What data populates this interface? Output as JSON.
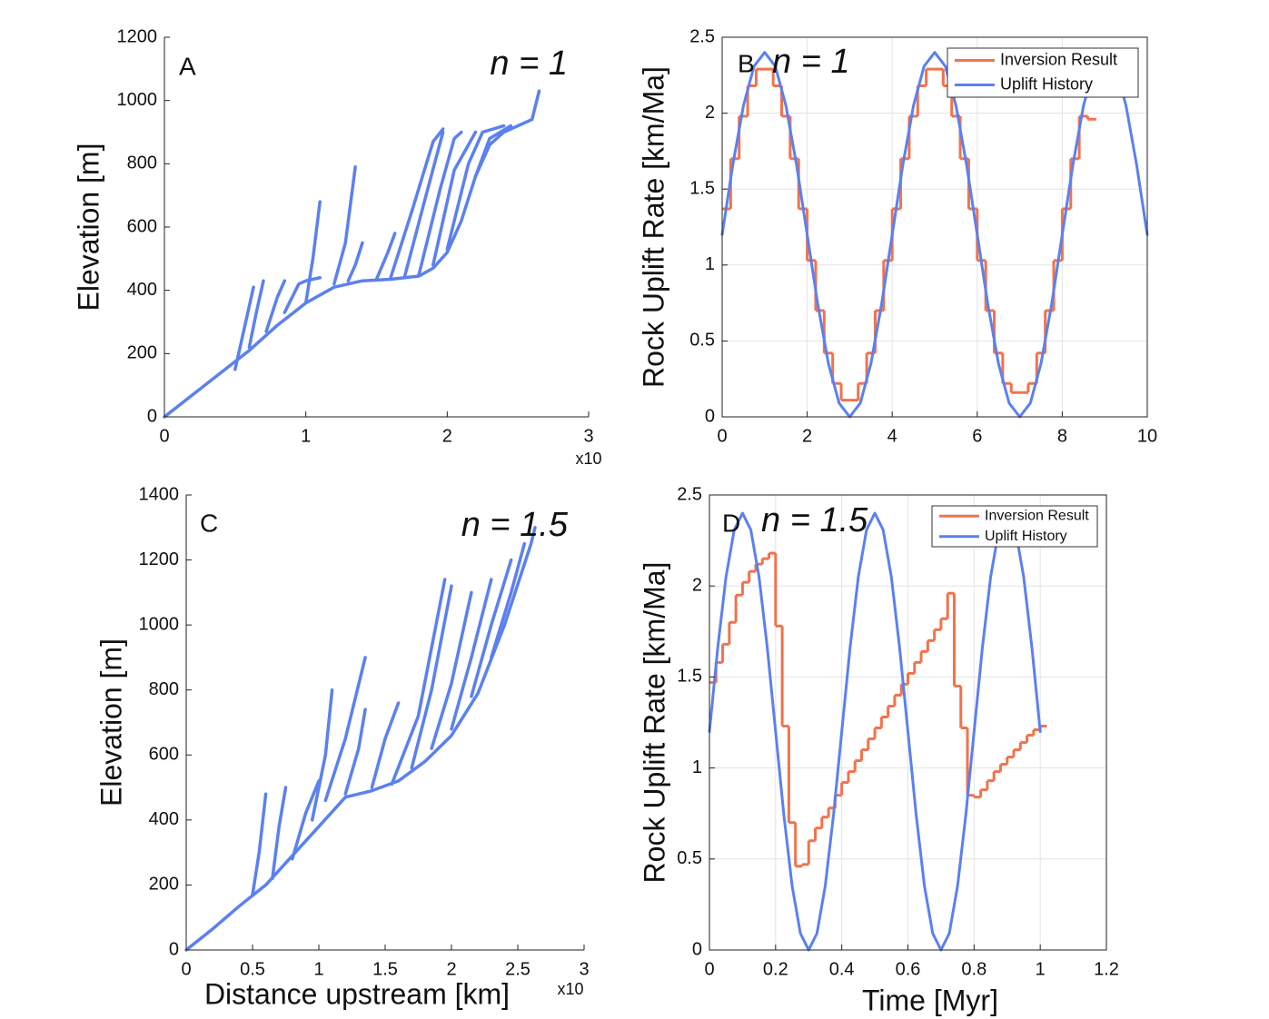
{
  "chart_data": [
    {
      "type": "line",
      "panel_label": "A",
      "annotation": "n = 1",
      "ylabel": "Elevation [m]",
      "x_multiplier": "x10",
      "xlim": [
        0,
        3
      ],
      "ylim": [
        0,
        1200
      ],
      "xticks": [
        0,
        1,
        2,
        3
      ],
      "yticks": [
        0,
        200,
        400,
        600,
        800,
        1000,
        1200
      ],
      "grid": false,
      "box": false,
      "series": [
        {
          "color": "#5b80f0",
          "x": [
            0,
            0.2,
            0.4,
            0.6,
            0.8,
            1.0,
            1.2,
            1.4,
            1.6,
            1.8,
            1.9,
            2.0,
            2.1,
            2.2,
            2.3,
            2.4,
            2.5,
            2.6,
            2.65
          ],
          "values": [
            0,
            70,
            140,
            210,
            290,
            360,
            410,
            430,
            435,
            445,
            470,
            520,
            620,
            760,
            860,
            900,
            920,
            940,
            1030
          ]
        },
        {
          "color": "#5b80f0",
          "x": [
            0.5,
            0.55,
            0.6,
            0.63
          ],
          "values": [
            150,
            250,
            350,
            410
          ]
        },
        {
          "color": "#5b80f0",
          "x": [
            0.6,
            0.65,
            0.7
          ],
          "values": [
            220,
            330,
            430
          ]
        },
        {
          "color": "#5b80f0",
          "x": [
            0.72,
            0.8,
            0.85
          ],
          "values": [
            270,
            380,
            430
          ]
        },
        {
          "color": "#5b80f0",
          "x": [
            0.85,
            0.95,
            1.0,
            1.1
          ],
          "values": [
            330,
            420,
            430,
            440
          ]
        },
        {
          "color": "#5b80f0",
          "x": [
            1.0,
            1.05,
            1.1
          ],
          "values": [
            360,
            500,
            680
          ]
        },
        {
          "color": "#5b80f0",
          "x": [
            1.2,
            1.28,
            1.35
          ],
          "values": [
            420,
            550,
            790
          ]
        },
        {
          "color": "#5b80f0",
          "x": [
            1.3,
            1.35,
            1.4
          ],
          "values": [
            430,
            480,
            550
          ]
        },
        {
          "color": "#5b80f0",
          "x": [
            1.5,
            1.58,
            1.63
          ],
          "values": [
            435,
            520,
            580
          ]
        },
        {
          "color": "#5b80f0",
          "x": [
            1.6,
            1.75,
            1.9,
            1.97
          ],
          "values": [
            440,
            650,
            870,
            910
          ]
        },
        {
          "color": "#5b80f0",
          "x": [
            1.7,
            1.85,
            1.97
          ],
          "values": [
            445,
            700,
            900
          ]
        },
        {
          "color": "#5b80f0",
          "x": [
            1.8,
            1.95,
            2.05,
            2.1
          ],
          "values": [
            450,
            720,
            880,
            900
          ]
        },
        {
          "color": "#5b80f0",
          "x": [
            1.9,
            2.05,
            2.2
          ],
          "values": [
            480,
            780,
            900
          ]
        },
        {
          "color": "#5b80f0",
          "x": [
            2.0,
            2.15,
            2.25,
            2.4
          ],
          "values": [
            530,
            800,
            900,
            920
          ]
        },
        {
          "color": "#5b80f0",
          "x": [
            2.2,
            2.3,
            2.45
          ],
          "values": [
            760,
            880,
            920
          ]
        }
      ]
    },
    {
      "type": "line",
      "panel_label": "B",
      "annotation": "n = 1",
      "ylabel": "Rock Uplift Rate [km/Ma]",
      "xlim": [
        0,
        10
      ],
      "ylim": [
        0,
        2.5
      ],
      "xticks": [
        0,
        2,
        4,
        6,
        8,
        10
      ],
      "yticks": [
        0,
        0.5,
        1,
        1.5,
        2,
        2.5
      ],
      "grid": true,
      "box": true,
      "legend": "upper right",
      "series": [
        {
          "name": "Inversion Result",
          "color": "#f2724b",
          "step": true,
          "x": [
            0,
            0.2,
            0.4,
            0.6,
            0.8,
            1.0,
            1.2,
            1.4,
            1.6,
            1.8,
            2.0,
            2.2,
            2.4,
            2.6,
            2.8,
            3.0,
            3.2,
            3.4,
            3.6,
            3.8,
            4.0,
            4.2,
            4.4,
            4.6,
            4.8,
            5.0,
            5.2,
            5.4,
            5.6,
            5.8,
            6.0,
            6.2,
            6.4,
            6.6,
            6.8,
            7.0,
            7.2,
            7.4,
            7.6,
            7.8,
            8.0,
            8.2,
            8.4,
            8.6
          ],
          "values": [
            1.37,
            1.7,
            1.98,
            2.18,
            2.29,
            2.29,
            2.18,
            1.98,
            1.7,
            1.37,
            1.03,
            0.7,
            0.42,
            0.22,
            0.11,
            0.11,
            0.22,
            0.42,
            0.7,
            1.03,
            1.37,
            1.7,
            1.98,
            2.18,
            2.29,
            2.29,
            2.18,
            1.98,
            1.7,
            1.37,
            1.03,
            0.7,
            0.42,
            0.22,
            0.16,
            0.16,
            0.22,
            0.42,
            0.7,
            1.03,
            1.37,
            1.7,
            1.98,
            1.96
          ]
        },
        {
          "name": "Uplift History",
          "color": "#5b80f0",
          "x": [
            0,
            0.25,
            0.5,
            0.75,
            1,
            1.25,
            1.5,
            1.75,
            2,
            2.25,
            2.5,
            2.75,
            3,
            3.25,
            3.5,
            3.75,
            4,
            4.25,
            4.5,
            4.75,
            5,
            5.25,
            5.5,
            5.75,
            6,
            6.25,
            6.5,
            6.75,
            7,
            7.25,
            7.5,
            7.75,
            8,
            8.25,
            8.5,
            8.75,
            9,
            9.25,
            9.5,
            9.75,
            10
          ],
          "values": [
            1.2,
            1.659,
            2.049,
            2.309,
            2.4,
            2.309,
            2.049,
            1.659,
            1.2,
            0.741,
            0.351,
            0.091,
            0,
            0.091,
            0.351,
            0.741,
            1.2,
            1.659,
            2.049,
            2.309,
            2.4,
            2.309,
            2.049,
            1.659,
            1.2,
            0.741,
            0.351,
            0.091,
            0,
            0.091,
            0.351,
            0.741,
            1.2,
            1.659,
            2.049,
            2.309,
            2.4,
            2.309,
            2.049,
            1.659,
            1.2
          ]
        }
      ]
    },
    {
      "type": "line",
      "panel_label": "C",
      "annotation": "n = 1.5",
      "ylabel": "Elevation [m]",
      "xlabel": "Distance upstream [km]",
      "x_multiplier": "x10",
      "xlim": [
        0,
        3
      ],
      "ylim": [
        0,
        1400
      ],
      "xticks": [
        0,
        0.5,
        1,
        1.5,
        2,
        2.5,
        3
      ],
      "yticks": [
        0,
        200,
        400,
        600,
        800,
        1000,
        1200,
        1400
      ],
      "grid": false,
      "box": false,
      "series": [
        {
          "color": "#5b80f0",
          "x": [
            0,
            0.2,
            0.4,
            0.6,
            0.8,
            1.0,
            1.2,
            1.4,
            1.6,
            1.8,
            2.0,
            2.2,
            2.4,
            2.6,
            2.63
          ],
          "values": [
            0,
            65,
            135,
            200,
            290,
            380,
            470,
            490,
            520,
            580,
            660,
            790,
            1000,
            1250,
            1300
          ]
        },
        {
          "color": "#5b80f0",
          "x": [
            0.5,
            0.55,
            0.6
          ],
          "values": [
            170,
            300,
            480
          ]
        },
        {
          "color": "#5b80f0",
          "x": [
            0.65,
            0.7,
            0.75
          ],
          "values": [
            220,
            380,
            500
          ]
        },
        {
          "color": "#5b80f0",
          "x": [
            0.8,
            0.9,
            1.0
          ],
          "values": [
            280,
            420,
            520
          ]
        },
        {
          "color": "#5b80f0",
          "x": [
            0.95,
            1.05,
            1.1
          ],
          "values": [
            400,
            600,
            800
          ]
        },
        {
          "color": "#5b80f0",
          "x": [
            1.05,
            1.2,
            1.35
          ],
          "values": [
            460,
            650,
            900
          ]
        },
        {
          "color": "#5b80f0",
          "x": [
            1.2,
            1.3,
            1.35
          ],
          "values": [
            480,
            620,
            740
          ]
        },
        {
          "color": "#5b80f0",
          "x": [
            1.4,
            1.5,
            1.6
          ],
          "values": [
            500,
            650,
            760
          ]
        },
        {
          "color": "#5b80f0",
          "x": [
            1.55,
            1.75,
            1.95
          ],
          "values": [
            510,
            720,
            1140
          ]
        },
        {
          "color": "#5b80f0",
          "x": [
            1.7,
            1.85,
            2.0
          ],
          "values": [
            560,
            800,
            1120
          ]
        },
        {
          "color": "#5b80f0",
          "x": [
            1.85,
            2.0,
            2.15
          ],
          "values": [
            620,
            820,
            1100
          ]
        },
        {
          "color": "#5b80f0",
          "x": [
            2.0,
            2.15,
            2.3
          ],
          "values": [
            680,
            900,
            1140
          ]
        },
        {
          "color": "#5b80f0",
          "x": [
            2.15,
            2.3,
            2.45
          ],
          "values": [
            780,
            1000,
            1200
          ]
        },
        {
          "color": "#5b80f0",
          "x": [
            2.3,
            2.45,
            2.55
          ],
          "values": [
            900,
            1100,
            1250
          ]
        }
      ]
    },
    {
      "type": "line",
      "panel_label": "D",
      "annotation": "n = 1.5",
      "ylabel": "Rock Uplift Rate [km/Ma]",
      "xlabel": "Time [Myr]",
      "xlim": [
        0,
        1.2
      ],
      "ylim": [
        0,
        2.5
      ],
      "xticks": [
        0,
        0.2,
        0.4,
        0.6,
        0.8,
        1,
        1.2
      ],
      "yticks": [
        0,
        0.5,
        1,
        1.5,
        2,
        2.5
      ],
      "grid": true,
      "box": true,
      "legend": "upper right",
      "series": [
        {
          "name": "Inversion Result",
          "color": "#f2724b",
          "step": true,
          "x": [
            0,
            0.02,
            0.04,
            0.06,
            0.08,
            0.1,
            0.12,
            0.14,
            0.16,
            0.18,
            0.2,
            0.22,
            0.24,
            0.26,
            0.28,
            0.3,
            0.32,
            0.34,
            0.36,
            0.38,
            0.4,
            0.42,
            0.44,
            0.46,
            0.48,
            0.5,
            0.52,
            0.54,
            0.56,
            0.58,
            0.6,
            0.62,
            0.64,
            0.66,
            0.68,
            0.7,
            0.72,
            0.74,
            0.76,
            0.78,
            0.8,
            0.82,
            0.84,
            0.86,
            0.88,
            0.9,
            0.92,
            0.94,
            0.96,
            0.98,
            1.0
          ],
          "values": [
            1.47,
            1.58,
            1.68,
            1.8,
            1.95,
            2.02,
            2.08,
            2.12,
            2.15,
            2.18,
            1.78,
            1.23,
            0.7,
            0.46,
            0.47,
            0.6,
            0.67,
            0.73,
            0.78,
            0.85,
            0.92,
            0.98,
            1.04,
            1.1,
            1.16,
            1.22,
            1.28,
            1.34,
            1.4,
            1.46,
            1.52,
            1.58,
            1.64,
            1.7,
            1.76,
            1.82,
            1.96,
            1.45,
            1.22,
            0.85,
            0.84,
            0.88,
            0.93,
            0.98,
            1.02,
            1.06,
            1.1,
            1.14,
            1.18,
            1.21,
            1.23
          ]
        },
        {
          "name": "Uplift History",
          "color": "#5b80f0",
          "x": [
            0,
            0.025,
            0.05,
            0.075,
            0.1,
            0.125,
            0.15,
            0.175,
            0.2,
            0.225,
            0.25,
            0.275,
            0.3,
            0.325,
            0.35,
            0.375,
            0.4,
            0.425,
            0.45,
            0.475,
            0.5,
            0.525,
            0.55,
            0.575,
            0.6,
            0.625,
            0.65,
            0.675,
            0.7,
            0.725,
            0.75,
            0.775,
            0.8,
            0.825,
            0.85,
            0.875,
            0.9,
            0.925,
            0.95,
            0.975,
            1.0
          ],
          "values": [
            1.2,
            1.659,
            2.049,
            2.309,
            2.4,
            2.309,
            2.049,
            1.659,
            1.2,
            0.741,
            0.351,
            0.091,
            0,
            0.091,
            0.351,
            0.741,
            1.2,
            1.659,
            2.049,
            2.309,
            2.4,
            2.309,
            2.049,
            1.659,
            1.2,
            0.741,
            0.351,
            0.091,
            0,
            0.091,
            0.351,
            0.741,
            1.2,
            1.659,
            2.049,
            2.309,
            2.4,
            2.309,
            2.049,
            1.659,
            1.2
          ]
        }
      ]
    }
  ]
}
